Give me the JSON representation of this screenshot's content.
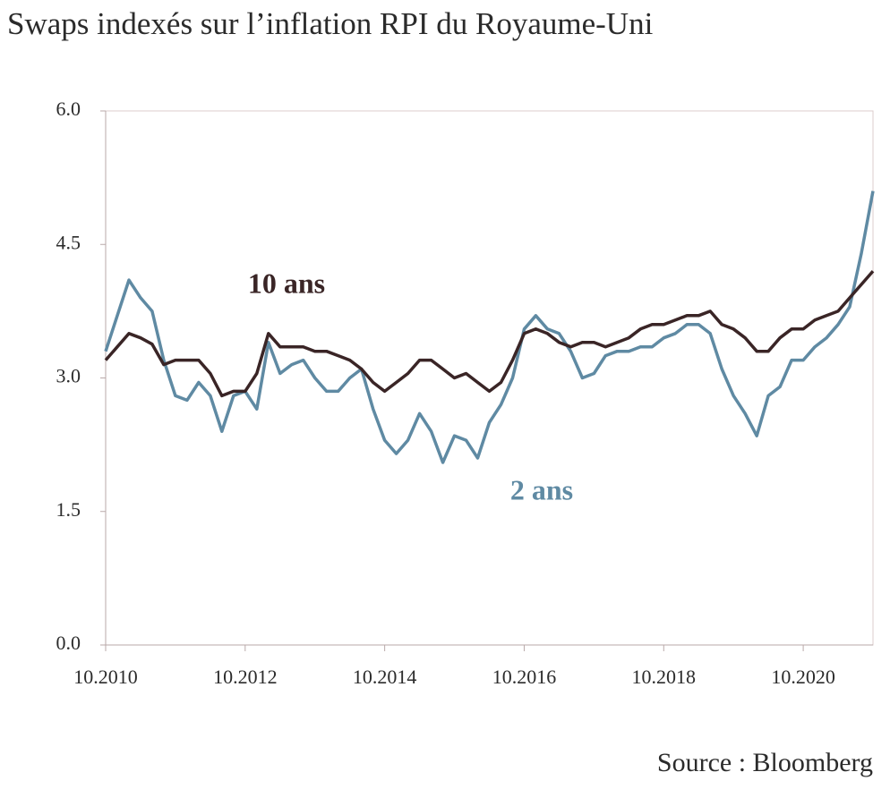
{
  "chart_data": {
    "type": "line",
    "title": "Swaps indexés sur l’inflation RPI du Royaume-Uni",
    "source": "Source : Bloomberg",
    "x": [
      "2010-10",
      "2010-12",
      "2011-02",
      "2011-04",
      "2011-06",
      "2011-08",
      "2011-10",
      "2011-12",
      "2012-02",
      "2012-04",
      "2012-06",
      "2012-08",
      "2012-10",
      "2012-12",
      "2013-02",
      "2013-04",
      "2013-06",
      "2013-08",
      "2013-10",
      "2013-12",
      "2014-02",
      "2014-04",
      "2014-06",
      "2014-08",
      "2014-10",
      "2014-12",
      "2015-02",
      "2015-04",
      "2015-06",
      "2015-08",
      "2015-10",
      "2015-12",
      "2016-02",
      "2016-04",
      "2016-06",
      "2016-08",
      "2016-10",
      "2016-12",
      "2017-02",
      "2017-04",
      "2017-06",
      "2017-08",
      "2017-10",
      "2017-12",
      "2018-02",
      "2018-04",
      "2018-06",
      "2018-08",
      "2018-10",
      "2018-12",
      "2019-02",
      "2019-04",
      "2019-06",
      "2019-08",
      "2019-10",
      "2019-12",
      "2020-02",
      "2020-04",
      "2020-06",
      "2020-08",
      "2020-10",
      "2020-12",
      "2021-02",
      "2021-04",
      "2021-06",
      "2021-08",
      "2021-10"
    ],
    "series": [
      {
        "name": "2 ans",
        "color": "#5f8aa3",
        "values": [
          3.3,
          3.7,
          4.1,
          3.9,
          3.75,
          3.2,
          2.8,
          2.75,
          2.95,
          2.8,
          2.4,
          2.8,
          2.85,
          2.65,
          3.4,
          3.05,
          3.15,
          3.2,
          3.0,
          2.85,
          2.85,
          3.0,
          3.1,
          2.65,
          2.3,
          2.15,
          2.3,
          2.6,
          2.4,
          2.05,
          2.35,
          2.3,
          2.1,
          2.5,
          2.7,
          3.0,
          3.55,
          3.7,
          3.55,
          3.5,
          3.3,
          3.0,
          3.05,
          3.25,
          3.3,
          3.3,
          3.35,
          3.35,
          3.45,
          3.5,
          3.6,
          3.6,
          3.5,
          3.1,
          2.8,
          2.6,
          2.35,
          2.8,
          2.9,
          3.2,
          3.2,
          3.35,
          3.45,
          3.6,
          3.8,
          4.4,
          5.1
        ]
      },
      {
        "name": "10 ans",
        "color": "#3a2526",
        "values": [
          3.2,
          3.35,
          3.5,
          3.45,
          3.38,
          3.15,
          3.2,
          3.2,
          3.2,
          3.05,
          2.8,
          2.85,
          2.85,
          3.05,
          3.5,
          3.35,
          3.35,
          3.35,
          3.3,
          3.3,
          3.25,
          3.2,
          3.1,
          2.95,
          2.85,
          2.95,
          3.05,
          3.2,
          3.2,
          3.1,
          3.0,
          3.05,
          2.95,
          2.85,
          2.95,
          3.2,
          3.5,
          3.55,
          3.5,
          3.4,
          3.35,
          3.4,
          3.4,
          3.35,
          3.4,
          3.45,
          3.55,
          3.6,
          3.6,
          3.65,
          3.7,
          3.7,
          3.75,
          3.6,
          3.55,
          3.45,
          3.3,
          3.3,
          3.45,
          3.55,
          3.55,
          3.65,
          3.7,
          3.75,
          3.9,
          4.05,
          4.2
        ]
      }
    ],
    "xlim": [
      "2010-10",
      "2021-10"
    ],
    "xticks": [
      {
        "value": "2010-10",
        "label": "10.2010"
      },
      {
        "value": "2012-10",
        "label": "10.2012"
      },
      {
        "value": "2014-10",
        "label": "10.2014"
      },
      {
        "value": "2016-10",
        "label": "10.2016"
      },
      {
        "value": "2018-10",
        "label": "10.2018"
      },
      {
        "value": "2020-10",
        "label": "10.2020"
      }
    ],
    "ylim": [
      0,
      6
    ],
    "yticks": [
      {
        "value": 0,
        "label": "0.0"
      },
      1.5,
      {
        "value": 3,
        "label": "3.0"
      },
      4.5,
      {
        "value": 6,
        "label": "6.0"
      }
    ]
  }
}
